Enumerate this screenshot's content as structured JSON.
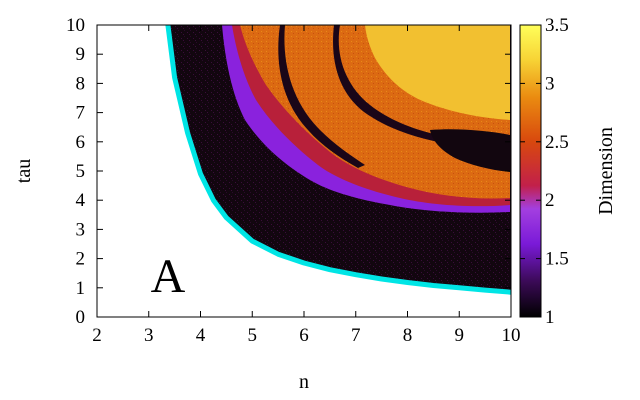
{
  "chart_data": {
    "type": "heatmap",
    "title": "",
    "xlabel": "n",
    "ylabel": "tau",
    "xlim": [
      2,
      10
    ],
    "ylim": [
      0,
      10
    ],
    "x_ticks": [
      "2",
      "3",
      "4",
      "5",
      "6",
      "7",
      "8",
      "9",
      "10"
    ],
    "y_ticks": [
      "0",
      "1",
      "2",
      "3",
      "4",
      "5",
      "6",
      "7",
      "8",
      "9",
      "10"
    ],
    "colorbar": {
      "label": "Dimension",
      "range": [
        1,
        3.5
      ],
      "ticks": [
        "1",
        "1.5",
        "2",
        "2.5",
        "3",
        "3.5"
      ],
      "colors": [
        "#000000",
        "#3a0a55",
        "#7a1ad8",
        "#a33fe0",
        "#c2204a",
        "#d8480e",
        "#ea8a10",
        "#f7d335",
        "#ffff5a"
      ]
    },
    "boundary_curve": {
      "color": "#00e5e5",
      "x": [
        3.37,
        3.5,
        3.75,
        4.0,
        4.25,
        4.5,
        5.0,
        5.5,
        6.0,
        6.5,
        7.0,
        7.5,
        8.0,
        8.5,
        9.0,
        9.5,
        10.0
      ],
      "y": [
        10.0,
        8.2,
        6.3,
        4.9,
        4.0,
        3.4,
        2.6,
        2.15,
        1.85,
        1.62,
        1.45,
        1.3,
        1.18,
        1.08,
        1.0,
        0.92,
        0.85
      ]
    },
    "panel_label": "A"
  }
}
